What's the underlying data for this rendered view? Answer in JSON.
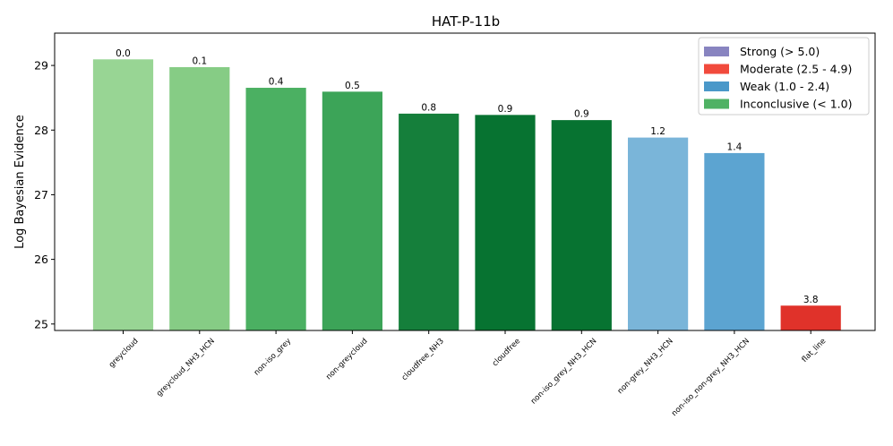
{
  "chart_data": {
    "type": "bar",
    "title": "HAT-P-11b",
    "xlabel": "",
    "ylabel": "Log Bayesian Evidence",
    "ylim": [
      24.9,
      29.5
    ],
    "yticks": [
      25,
      26,
      27,
      28,
      29
    ],
    "grid": false,
    "legend_position": "top-right",
    "categories": [
      "greycloud",
      "greycloud_NH3_HCN",
      "non-iso_grey",
      "non-greycloud",
      "cloudfree_NH3",
      "cloudfree",
      "non-iso_grey_NH3_HCN",
      "non-grey_NH3_HCN",
      "non-iso_non-grey_NH3_HCN",
      "flat_line"
    ],
    "values": [
      29.1,
      28.98,
      28.66,
      28.6,
      28.26,
      28.24,
      28.16,
      27.89,
      27.65,
      25.29
    ],
    "data_labels": [
      "0.0",
      "0.1",
      "0.4",
      "0.5",
      "0.8",
      "0.9",
      "0.9",
      "1.2",
      "1.4",
      "3.8"
    ],
    "bar_colors": [
      "#98d594",
      "#86cc85",
      "#4bb062",
      "#3ca458",
      "#157f3b",
      "#077331",
      "#077331",
      "#7ab5d9",
      "#5ca4d1",
      "#e0322a"
    ],
    "legend": [
      {
        "label": "Strong (> 5.0)",
        "color": "#8884c0"
      },
      {
        "label": "Moderate (2.5 - 4.9)",
        "color": "#f14a3c"
      },
      {
        "label": "Weak (1.0 - 2.4)",
        "color": "#4a98c9"
      },
      {
        "label": "Inconclusive (< 1.0)",
        "color": "#4fb264"
      }
    ]
  }
}
